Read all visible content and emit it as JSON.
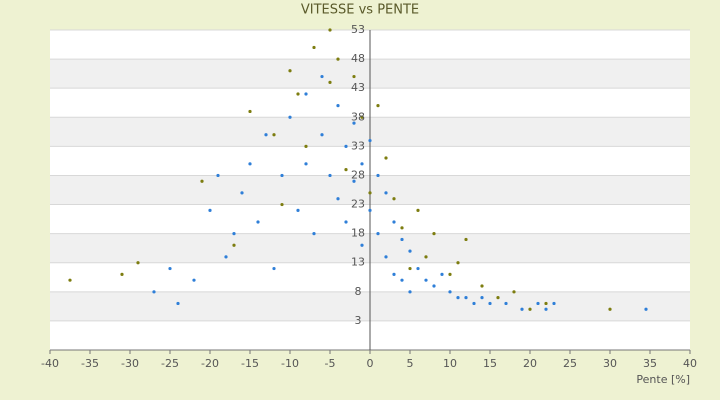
{
  "chart_data": {
    "type": "scatter",
    "title": "VITESSE vs PENTE",
    "x_label": "Pente [%]",
    "xlim": [
      -40,
      40
    ],
    "xticks": [
      -40,
      -35,
      -30,
      -25,
      -20,
      -15,
      -10,
      -5,
      0,
      5,
      10,
      15,
      20,
      25,
      30,
      35,
      40
    ],
    "ylim": [
      -2,
      53
    ],
    "yticks": [
      53,
      48,
      43,
      38,
      33,
      28,
      23,
      18,
      13,
      8,
      3
    ],
    "grid": true,
    "series": [
      {
        "color": "#2f7fd8",
        "x": [
          -27,
          -25,
          -24,
          -22,
          -20,
          -19,
          -18,
          -17,
          -16,
          -15,
          -14,
          -13,
          -12,
          -11,
          -10,
          -9,
          -8,
          -8,
          -7,
          -6,
          -6,
          -5,
          -4,
          -4,
          -3,
          -3,
          -2,
          -2,
          -1,
          -1,
          0,
          0,
          1,
          1,
          2,
          2,
          3,
          3,
          4,
          4,
          5,
          5,
          6,
          7,
          8,
          9,
          10,
          11,
          12,
          13,
          14,
          15,
          17,
          19,
          21,
          22,
          23,
          34.5
        ],
        "values": [
          8,
          12,
          6,
          10,
          22,
          28,
          14,
          18,
          25,
          30,
          20,
          35,
          12,
          28,
          38,
          22,
          42,
          30,
          18,
          45,
          35,
          28,
          40,
          24,
          33,
          20,
          37,
          27,
          30,
          16,
          34,
          22,
          28,
          18,
          25,
          14,
          20,
          11,
          17,
          10,
          15,
          8,
          12,
          10,
          9,
          11,
          8,
          7,
          7,
          6,
          7,
          6,
          6,
          5,
          6,
          5,
          6,
          5
        ]
      },
      {
        "color": "#7d7d10",
        "x": [
          -37.5,
          -31,
          -29,
          -21,
          -17,
          -15,
          -12,
          -11,
          -10,
          -9,
          -8,
          -7,
          -5,
          -5,
          -4,
          -3,
          -2,
          -1,
          0,
          1,
          2,
          3,
          4,
          5,
          6,
          7,
          8,
          10,
          11,
          12,
          14,
          16,
          18,
          20,
          22,
          30
        ],
        "values": [
          10,
          11,
          13,
          27,
          16,
          39,
          35,
          23,
          46,
          42,
          33,
          50,
          53,
          44,
          48,
          29,
          45,
          38,
          25,
          40,
          31,
          24,
          19,
          12,
          22,
          14,
          18,
          11,
          13,
          17,
          9,
          7,
          8,
          5,
          6,
          5
        ]
      }
    ]
  }
}
